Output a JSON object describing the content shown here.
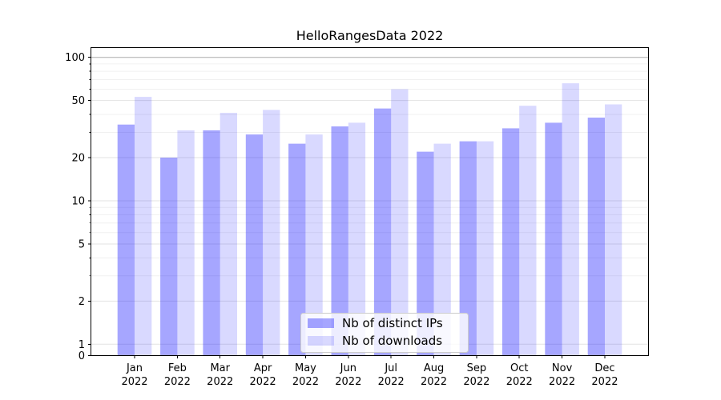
{
  "chart_data": {
    "type": "bar",
    "title": "HelloRangesData 2022",
    "yscale": "symlog",
    "grid": true,
    "legend_position": "lower center",
    "categories": [
      "Jan",
      "Feb",
      "Mar",
      "Apr",
      "May",
      "Jun",
      "Jul",
      "Aug",
      "Sep",
      "Oct",
      "Nov",
      "Dec"
    ],
    "xtick_year": "2022",
    "yticks": [
      100,
      50,
      20,
      10,
      5,
      2,
      1,
      0
    ],
    "minor_gridlines": [
      3,
      4,
      6,
      7,
      8,
      9,
      30,
      40,
      60,
      70,
      80,
      90
    ],
    "ylim": [
      0,
      118
    ],
    "series": [
      {
        "name": "Nb of distinct IPs",
        "color": "#0000ff",
        "alpha": 0.35,
        "fill_rgba": "rgba(0,0,255,0.35)",
        "flat_hex": "#a6a6ff",
        "values": [
          34,
          20,
          31,
          29,
          25,
          33,
          44,
          22,
          26,
          32,
          35,
          38
        ]
      },
      {
        "name": "Nb of downloads",
        "color": "#0000ff",
        "alpha": 0.15,
        "fill_rgba": "rgba(0,0,255,0.15)",
        "flat_hex": "#d9d9ff",
        "values": [
          53,
          31,
          41,
          43,
          29,
          35,
          60,
          25,
          26,
          46,
          66,
          47
        ]
      }
    ],
    "colors": {
      "grid_minor": "#f0f0f0",
      "grid_major": "#e3e3e3",
      "grid_top": "#ababab",
      "spine": "#000000",
      "legend_border": "#cccccc",
      "legend_bg": "rgba(255,255,255,0.8)"
    }
  }
}
